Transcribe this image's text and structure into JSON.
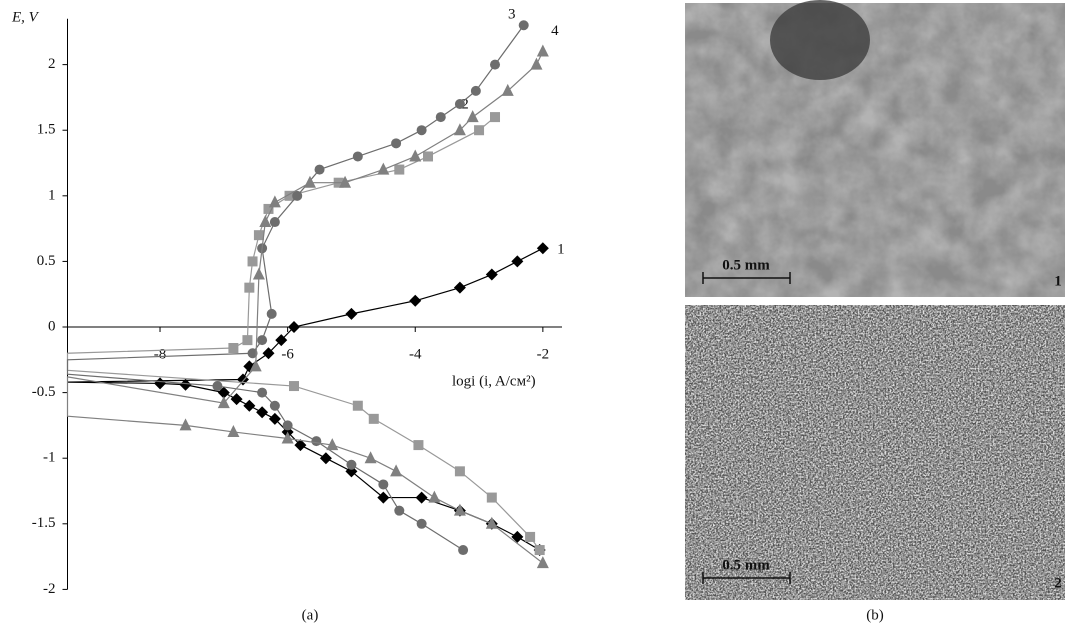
{
  "chart_data": {
    "type": "line",
    "y_label": "E, V",
    "x_label": "logi (i, A/см²)",
    "panel_label": "(a)",
    "xlim": [
      -9.45,
      -1.7
    ],
    "ylim": [
      -2,
      2.35
    ],
    "xticks": [
      -8,
      -6,
      -4,
      -2
    ],
    "yticks": [
      -2,
      -1.5,
      -1,
      -0.5,
      0,
      0.5,
      1,
      1.5,
      2
    ],
    "series": [
      {
        "name": "1",
        "color": "#000000",
        "marker": "diamond",
        "x": [
          -2.05,
          -2.4,
          -2.8,
          -3.3,
          -3.9,
          -4.5,
          -5.0,
          -5.4,
          -5.8,
          -6.0,
          -6.2,
          -6.4,
          -6.6,
          -6.8,
          -7.0,
          -7.6,
          -8.0,
          -9.45,
          -6.7,
          -6.6,
          -6.3,
          -6.1,
          -5.9,
          -5.0,
          -4.0,
          -3.3,
          -2.8,
          -2.4,
          -2.0
        ],
        "y": [
          -1.7,
          -1.6,
          -1.5,
          -1.4,
          -1.3,
          -1.3,
          -1.1,
          -1.0,
          -0.9,
          -0.8,
          -0.7,
          -0.65,
          -0.6,
          -0.55,
          -0.5,
          -0.44,
          -0.43,
          -0.42,
          -0.4,
          -0.3,
          -0.2,
          -0.1,
          0,
          0.1,
          0.2,
          0.3,
          0.4,
          0.5,
          0.6
        ]
      },
      {
        "name": "2",
        "color": "#999999",
        "marker": "square",
        "x": [
          -2.05,
          -2.2,
          -2.8,
          -3.3,
          -3.95,
          -4.65,
          -4.9,
          -5.9,
          -9.45,
          -9.45,
          -6.85,
          -6.63,
          -6.6,
          -6.55,
          -6.45,
          -6.3,
          -5.97,
          -5.2,
          -4.25,
          -3.8,
          -3.0,
          -2.75
        ],
        "y": [
          -1.7,
          -1.6,
          -1.3,
          -1.1,
          -0.9,
          -0.7,
          -0.6,
          -0.45,
          -0.33,
          -0.2,
          -0.16,
          -0.1,
          0.3,
          0.5,
          0.7,
          0.9,
          1.0,
          1.1,
          1.2,
          1.3,
          1.5,
          1.6
        ]
      },
      {
        "name": "3",
        "color": "#6d6d6d",
        "marker": "circle",
        "x": [
          -3.25,
          -3.9,
          -4.25,
          -4.5,
          -5.0,
          -5.55,
          -6.0,
          -6.2,
          -6.4,
          -7.1,
          -9.45,
          -9.45,
          -6.55,
          -6.4,
          -6.25,
          -6.4,
          -6.2,
          -5.85,
          -5.5,
          -4.9,
          -4.3,
          -3.9,
          -3.6,
          -3.3,
          -3.05,
          -2.75,
          -2.3
        ],
        "y": [
          -1.7,
          -1.5,
          -1.4,
          -1.2,
          -1.05,
          -0.87,
          -0.75,
          -0.6,
          -0.5,
          -0.45,
          -0.36,
          -0.25,
          -0.2,
          -0.1,
          0.1,
          0.6,
          0.8,
          1.0,
          1.2,
          1.3,
          1.4,
          1.5,
          1.6,
          1.7,
          1.8,
          2.0,
          2.3
        ]
      },
      {
        "name": "4",
        "color": "#808080",
        "marker": "triangle",
        "x": [
          -2.0,
          -2.8,
          -3.3,
          -3.7,
          -4.3,
          -4.7,
          -5.3,
          -6.0,
          -6.85,
          -7.6,
          -9.45,
          -9.45,
          -7.0,
          -6.5,
          -6.45,
          -6.35,
          -6.2,
          -5.65,
          -5.1,
          -4.5,
          -4.0,
          -3.3,
          -3.1,
          -2.55,
          -2.1,
          -2.0
        ],
        "y": [
          -1.8,
          -1.5,
          -1.4,
          -1.3,
          -1.1,
          -1.0,
          -0.9,
          -0.85,
          -0.8,
          -0.75,
          -0.68,
          -0.38,
          -0.58,
          -0.3,
          0.4,
          0.8,
          0.95,
          1.1,
          1.1,
          1.2,
          1.3,
          1.5,
          1.6,
          1.8,
          2.0,
          2.1
        ]
      }
    ]
  },
  "images": {
    "panel_label": "(b)",
    "items": [
      {
        "scale_label": "0.5 mm",
        "number": "1"
      },
      {
        "scale_label": "0.5 mm",
        "number": "2"
      }
    ]
  }
}
